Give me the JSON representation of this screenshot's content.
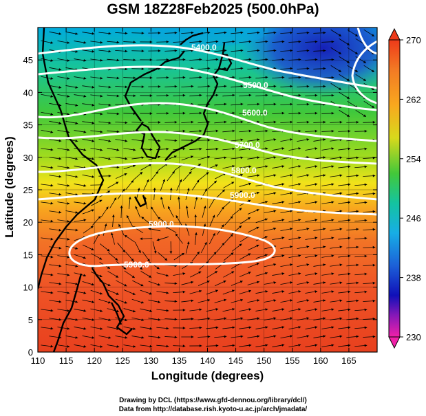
{
  "title": "GSM 18Z28Feb2025 (500.0hPa)",
  "x_axis": {
    "label": "Longitude (degrees)",
    "min": 110,
    "max": 170,
    "ticks": [
      "110",
      "115",
      "120",
      "125",
      "130",
      "135",
      "140",
      "145",
      "150",
      "155",
      "160",
      "165"
    ]
  },
  "y_axis": {
    "label": "Latitude  (degrees)",
    "min": 0,
    "max": 50,
    "ticks": [
      "0",
      "5",
      "10",
      "15",
      "20",
      "25",
      "30",
      "35",
      "40",
      "45"
    ]
  },
  "colorbar": {
    "min": 230,
    "max": 270,
    "ticks": [
      "270",
      "262",
      "254",
      "246",
      "238",
      "230"
    ]
  },
  "contours": [
    {
      "label": "5400.0"
    },
    {
      "label": "5500.0"
    },
    {
      "label": "5600.0"
    },
    {
      "label": "5700.0"
    },
    {
      "label": "5800.0"
    },
    {
      "label": "5900.0"
    },
    {
      "label": "5900.0"
    }
  ],
  "credits": {
    "line1": "Drawing by DCL (https://www.gfd-dennou.org/library/dcl/)",
    "line2": "Data from http://database.rish.kyoto-u.ac.jp/arch/jmadata/"
  }
}
